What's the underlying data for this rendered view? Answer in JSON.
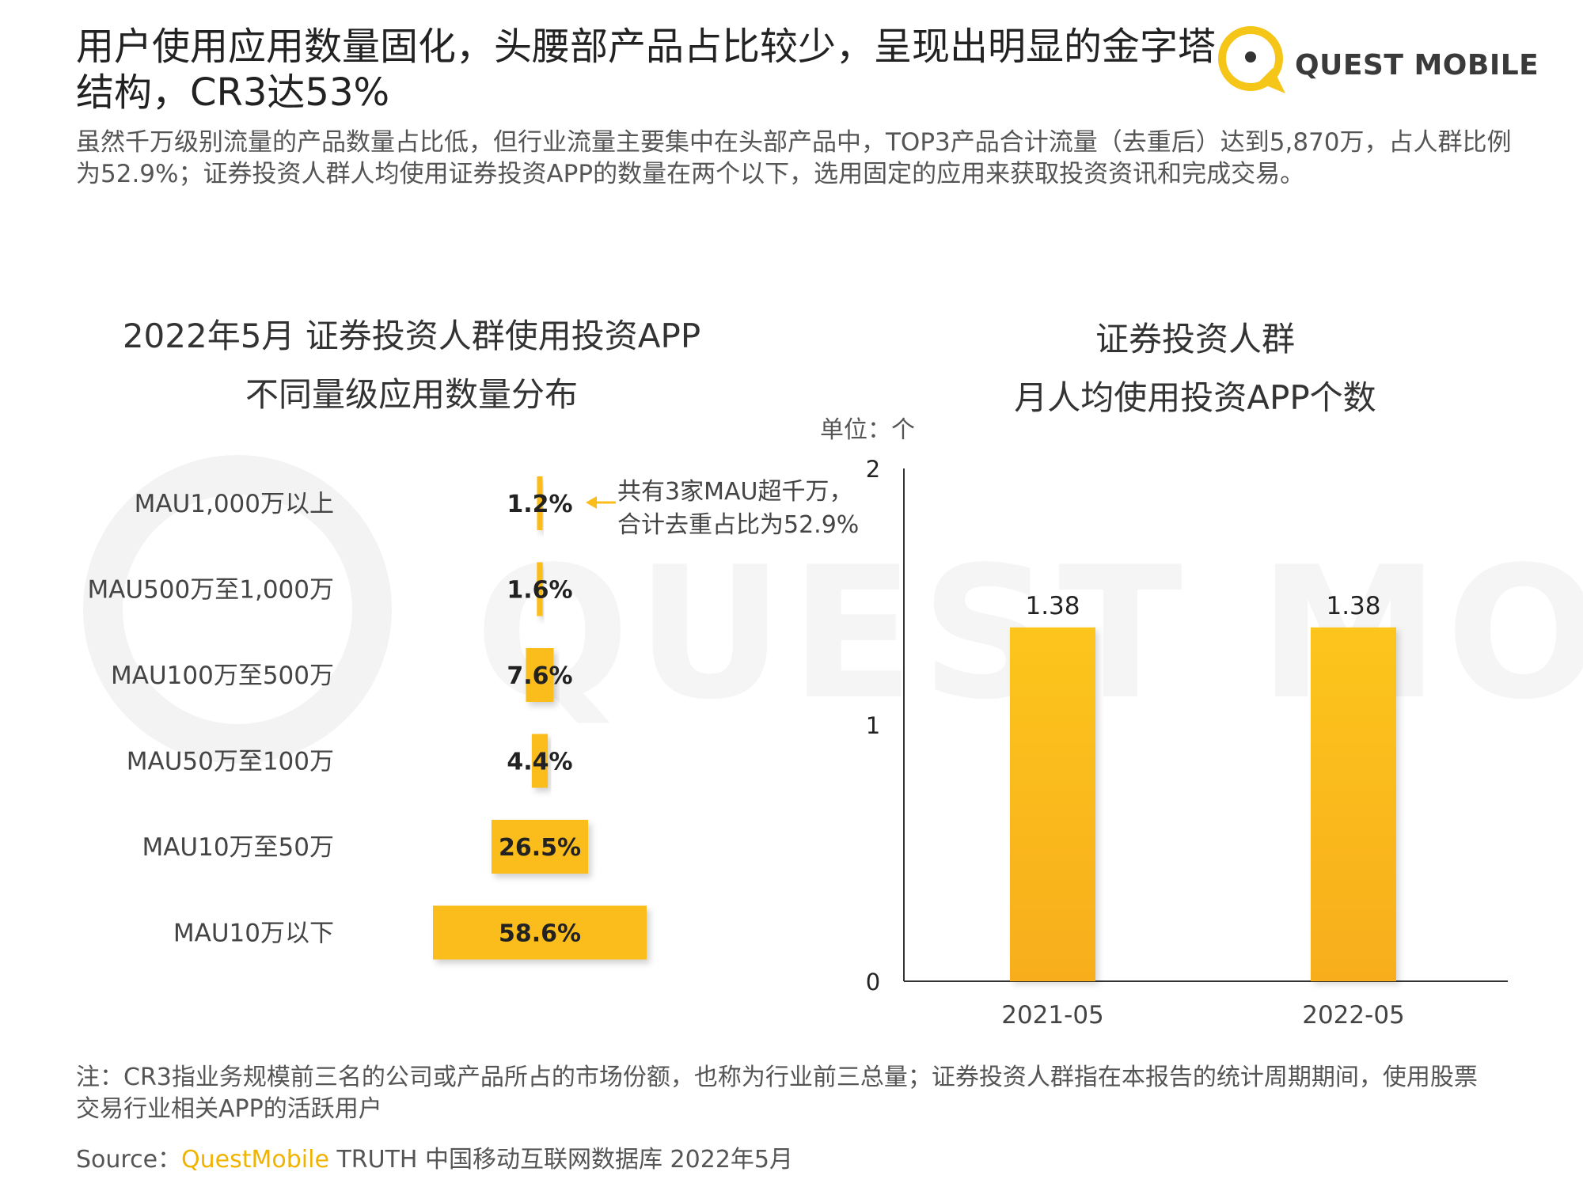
{
  "header": {
    "title": "用户使用应用数量固化，头腰部产品占比较少，呈现出明显的金字塔结构，CR3达53%",
    "subtitle": "虽然千万级别流量的产品数量占比低，但行业流量主要集中在头部产品中，TOP3产品合计流量（去重后）达到5,870万，占人群比例为52.9%；证券投资人群人均使用证券投资APP的数量在两个以下，选用固定的应用来获取投资资讯和完成交易。",
    "logo_text": "QUEST MOBILE"
  },
  "watermark": {
    "text": "QUEST MOBILE"
  },
  "colors": {
    "accent": "#fbbd1a",
    "bar_top": "#fcc51a",
    "bar_bottom": "#f8ae1c"
  },
  "chart_data": [
    {
      "type": "bar",
      "orientation": "horizontal-centered",
      "title_line1": "2022年5月 证券投资人群使用投资APP",
      "title_line2": "不同量级应用数量分布",
      "categories": [
        "MAU1,000万以上",
        "MAU500万至1,000万",
        "MAU100万至500万",
        "MAU50万至100万",
        "MAU10万至50万",
        "MAU10万以下"
      ],
      "values": [
        1.2,
        1.6,
        7.6,
        4.4,
        26.5,
        58.6
      ],
      "data_labels": [
        "1.2%",
        "1.6%",
        "7.6%",
        "4.4%",
        "26.5%",
        "58.6%"
      ],
      "annotation": {
        "line1": "共有3家MAU超千万，",
        "line2": "合计去重占比为52.9%",
        "target_index": 0
      }
    },
    {
      "type": "bar",
      "title_line1": "证券投资人群",
      "title_line2": "月人均使用投资APP个数",
      "unit_label": "单位：个",
      "categories": [
        "2021-05",
        "2022-05"
      ],
      "values": [
        1.38,
        1.38
      ],
      "data_labels": [
        "1.38",
        "1.38"
      ],
      "yticks": [
        "0",
        "1",
        "2"
      ],
      "ylim": [
        0,
        2
      ],
      "grid": false
    }
  ],
  "footer": {
    "note": "注：CR3指业务规模前三名的公司或产品所占的市场份额，也称为行业前三总量；证券投资人群指在本报告的统计周期期间，使用股票交易行业相关APP的活跃用户",
    "source_prefix": "Source：",
    "source_brand": "QuestMobile",
    "source_rest": " TRUTH 中国移动互联网数据库 2022年5月"
  }
}
